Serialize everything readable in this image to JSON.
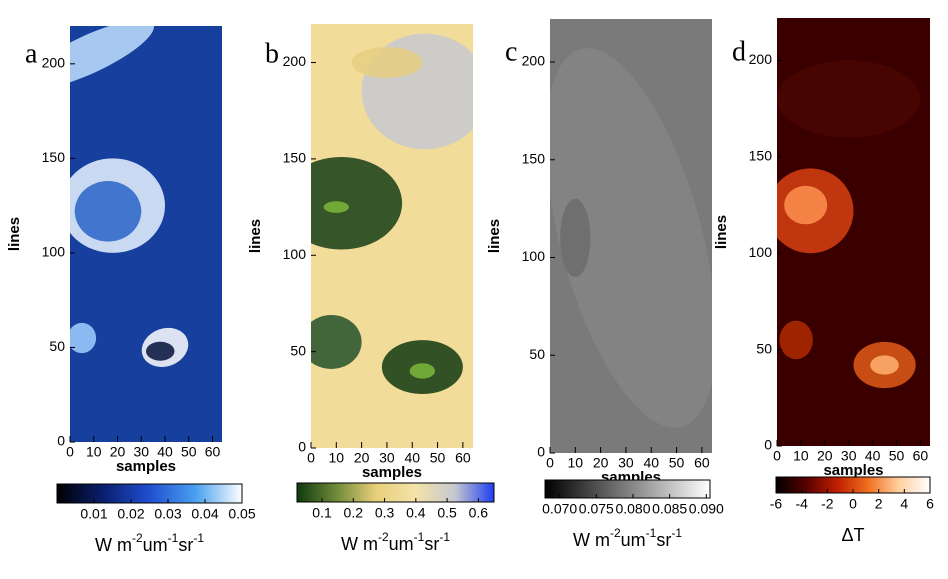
{
  "chart_data": [
    {
      "type": "image",
      "label": "a",
      "xlabel": "samples",
      "ylabel": "lines",
      "xlim": [
        0,
        64
      ],
      "ylim": [
        0,
        220
      ],
      "xticks": [
        0,
        10,
        20,
        30,
        40,
        50,
        60
      ],
      "yticks": [
        0,
        50,
        100,
        150,
        200
      ],
      "colormap": [
        "#000000",
        "#0a1f6e",
        "#1f4fd0",
        "#4aa0f0",
        "#ffffff"
      ],
      "colorbar": {
        "lim": [
          0,
          0.05
        ],
        "ticks": [
          0.01,
          0.02,
          0.03,
          0.04,
          0.05
        ],
        "label": [
          "W m",
          "-2",
          "um",
          "-1",
          "sr",
          "-1"
        ]
      }
    },
    {
      "type": "image",
      "label": "b",
      "xlabel": "samples",
      "ylabel": "lines",
      "xlim": [
        0,
        64
      ],
      "ylim": [
        0,
        220
      ],
      "xticks": [
        0,
        10,
        20,
        30,
        40,
        50,
        60
      ],
      "yticks": [
        0,
        50,
        100,
        150,
        200
      ],
      "colormap": [
        "#0f3a0f",
        "#6f8a3a",
        "#e8cf7a",
        "#f4e2a8",
        "#c6c8d0",
        "#1f3ef0"
      ],
      "colorbar": {
        "lim": [
          0.02,
          0.65
        ],
        "ticks": [
          0.1,
          0.2,
          0.3,
          0.4,
          0.5,
          0.6
        ],
        "label": [
          "W m",
          "-2",
          "um",
          "-1",
          "sr",
          "-1"
        ]
      }
    },
    {
      "type": "image",
      "label": "c",
      "xlabel": "samples",
      "ylabel": "lines",
      "xlim": [
        0,
        64
      ],
      "ylim": [
        0,
        222
      ],
      "xticks": [
        0,
        10,
        20,
        30,
        40,
        50,
        60
      ],
      "yticks": [
        0,
        50,
        100,
        150,
        200
      ],
      "colormap": [
        "#000000",
        "#ffffff"
      ],
      "colorbar": {
        "lim": [
          0.068,
          0.0905
        ],
        "ticks": [
          {
            "value": 0.07,
            "label": "0.070"
          },
          0.075,
          {
            "value": 0.08,
            "label": "0.080"
          },
          0.085,
          {
            "value": 0.09,
            "label": "0.090"
          }
        ],
        "label": [
          "W m",
          "-2",
          "um",
          "-1",
          "sr",
          "-1"
        ]
      }
    },
    {
      "type": "image",
      "label": "d",
      "xlabel": "samples",
      "ylabel": "lines",
      "xlim": [
        0,
        64
      ],
      "ylim": [
        0,
        222
      ],
      "xticks": [
        0,
        10,
        20,
        30,
        40,
        50,
        60
      ],
      "yticks": [
        0,
        50,
        100,
        150,
        200
      ],
      "colormap": [
        "#000000",
        "#5a0000",
        "#c02000",
        "#f07020",
        "#ffd0a0",
        "#ffffff"
      ],
      "colorbar": {
        "lim": [
          -6,
          6
        ],
        "ticks": [
          -6,
          -4,
          -2,
          0,
          2,
          4,
          6
        ],
        "label": "ΔT"
      }
    }
  ]
}
